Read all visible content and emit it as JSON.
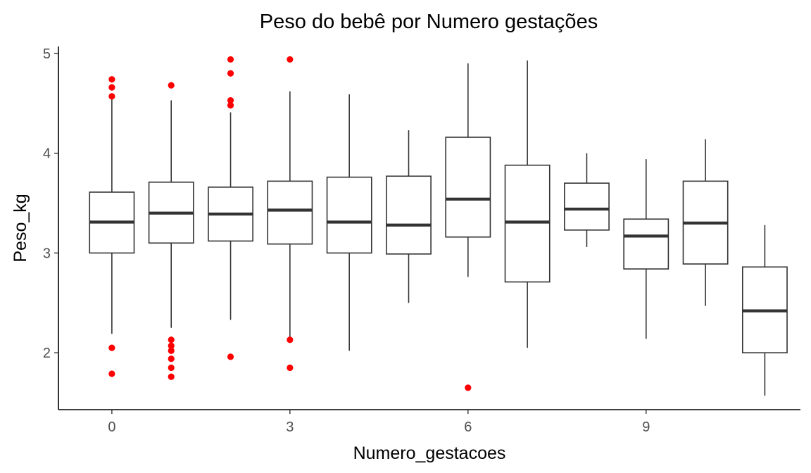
{
  "chart_data": {
    "type": "boxplot",
    "title": "Peso do bebê por Numero gestações",
    "xlabel": "Numero_gestacoes",
    "ylabel": "Peso_kg",
    "xlim": [
      -0.9,
      11.6
    ],
    "ylim": [
      1.43,
      5.07
    ],
    "x_ticks": [
      0,
      3,
      6,
      9
    ],
    "y_ticks": [
      2,
      3,
      4,
      5
    ],
    "grid": false,
    "legend": "none",
    "box_color": "#333333",
    "outlier_color": "#ff0000",
    "boxes": [
      {
        "x": 0,
        "lower": 2.19,
        "q1": 3.0,
        "median": 3.31,
        "q3": 3.61,
        "upper": 4.55,
        "outliers": [
          4.74,
          4.66,
          4.57,
          2.05,
          1.79
        ]
      },
      {
        "x": 1,
        "lower": 2.25,
        "q1": 3.1,
        "median": 3.4,
        "q3": 3.71,
        "upper": 4.53,
        "outliers": [
          4.68,
          2.13,
          2.07,
          2.02,
          1.94,
          1.85,
          1.76
        ]
      },
      {
        "x": 2,
        "lower": 2.33,
        "q1": 3.12,
        "median": 3.39,
        "q3": 3.66,
        "upper": 4.41,
        "outliers": [
          4.94,
          4.8,
          4.53,
          4.48,
          1.96
        ]
      },
      {
        "x": 3,
        "lower": 2.16,
        "q1": 3.09,
        "median": 3.43,
        "q3": 3.72,
        "upper": 4.62,
        "outliers": [
          4.94,
          2.13,
          1.85
        ]
      },
      {
        "x": 4,
        "lower": 2.02,
        "q1": 3.0,
        "median": 3.31,
        "q3": 3.76,
        "upper": 4.59,
        "outliers": []
      },
      {
        "x": 5,
        "lower": 2.5,
        "q1": 2.99,
        "median": 3.28,
        "q3": 3.77,
        "upper": 4.23,
        "outliers": []
      },
      {
        "x": 6,
        "lower": 2.76,
        "q1": 3.16,
        "median": 3.54,
        "q3": 4.16,
        "upper": 4.9,
        "outliers": [
          1.65
        ]
      },
      {
        "x": 7,
        "lower": 2.05,
        "q1": 2.71,
        "median": 3.31,
        "q3": 3.88,
        "upper": 4.93,
        "outliers": []
      },
      {
        "x": 8,
        "lower": 3.06,
        "q1": 3.23,
        "median": 3.44,
        "q3": 3.7,
        "upper": 4.0,
        "outliers": []
      },
      {
        "x": 9,
        "lower": 2.14,
        "q1": 2.84,
        "median": 3.17,
        "q3": 3.34,
        "upper": 3.94,
        "outliers": []
      },
      {
        "x": 10,
        "lower": 2.47,
        "q1": 2.89,
        "median": 3.3,
        "q3": 3.72,
        "upper": 4.14,
        "outliers": []
      },
      {
        "x": 11,
        "lower": 1.57,
        "q1": 2.0,
        "median": 2.42,
        "q3": 2.86,
        "upper": 3.28,
        "outliers": []
      }
    ]
  }
}
